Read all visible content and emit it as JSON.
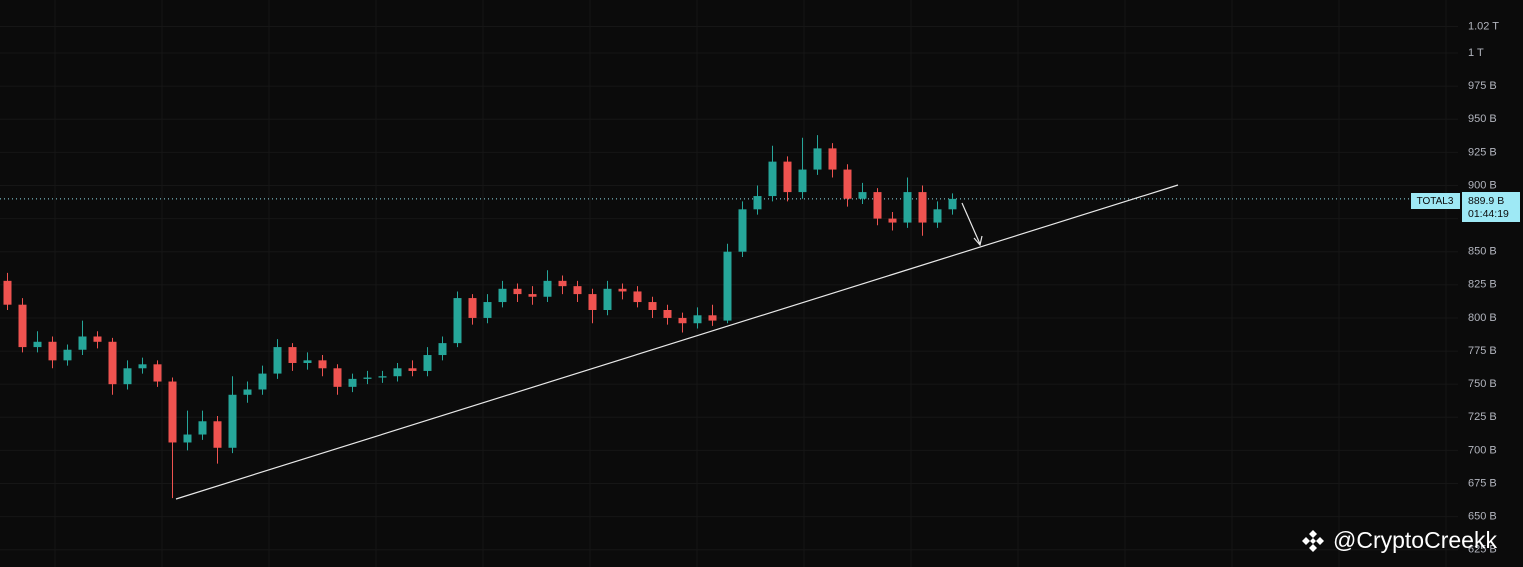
{
  "chart_data": {
    "type": "candlestick",
    "symbol": "TOTAL3",
    "last_price": 889.9,
    "last_price_label": "889.9 B",
    "countdown": "01:44:19",
    "watermark": "@CryptoCreekk",
    "up_color": "#26a69a",
    "down_color": "#ef5350",
    "grid": true,
    "ylim": [
      612,
      1040
    ],
    "yticks": [
      {
        "value": 625,
        "label": "625 B"
      },
      {
        "value": 650,
        "label": "650 B"
      },
      {
        "value": 675,
        "label": "675 B"
      },
      {
        "value": 700,
        "label": "700 B"
      },
      {
        "value": 725,
        "label": "725 B"
      },
      {
        "value": 750,
        "label": "750 B"
      },
      {
        "value": 775,
        "label": "775 B"
      },
      {
        "value": 800,
        "label": "800 B"
      },
      {
        "value": 825,
        "label": "825 B"
      },
      {
        "value": 850,
        "label": "850 B"
      },
      {
        "value": 875,
        "label": "875 B"
      },
      {
        "value": 900,
        "label": "900 B"
      },
      {
        "value": 925,
        "label": "925 B"
      },
      {
        "value": 950,
        "label": "950 B"
      },
      {
        "value": 975,
        "label": "975 B"
      },
      {
        "value": 1000,
        "label": "1 T"
      },
      {
        "value": 1020,
        "label": "1.02 T"
      }
    ],
    "open": [
      828,
      810,
      778,
      782,
      768,
      776,
      786,
      782,
      750,
      762,
      765,
      752,
      706,
      712,
      722,
      702,
      742,
      746,
      758,
      778,
      766,
      768,
      762,
      748,
      754,
      755,
      756,
      762,
      760,
      772,
      781,
      815,
      800,
      812,
      822,
      818,
      816,
      828,
      824,
      818,
      806,
      822,
      820,
      812,
      806,
      800,
      796,
      802,
      798,
      850,
      882,
      892,
      918,
      895,
      912,
      928,
      912,
      890,
      895,
      875,
      872,
      895,
      872,
      882
    ],
    "high": [
      834,
      815,
      790,
      786,
      780,
      798,
      790,
      785,
      768,
      770,
      768,
      755,
      730,
      730,
      726,
      756,
      752,
      764,
      784,
      781,
      774,
      772,
      765,
      758,
      760,
      760,
      766,
      768,
      778,
      786,
      820,
      818,
      818,
      828,
      826,
      824,
      836,
      832,
      828,
      822,
      828,
      826,
      824,
      816,
      810,
      804,
      808,
      810,
      856,
      888,
      900,
      930,
      922,
      936,
      938,
      932,
      916,
      902,
      898,
      880,
      906,
      900,
      888,
      894
    ],
    "low": [
      806,
      774,
      774,
      762,
      764,
      772,
      777,
      742,
      746,
      758,
      748,
      664,
      700,
      708,
      690,
      698,
      736,
      742,
      754,
      760,
      761,
      756,
      742,
      744,
      750,
      751,
      752,
      756,
      756,
      768,
      778,
      795,
      796,
      808,
      812,
      810,
      812,
      818,
      812,
      796,
      802,
      814,
      808,
      800,
      795,
      789,
      792,
      794,
      796,
      846,
      878,
      888,
      888,
      890,
      908,
      906,
      884,
      886,
      870,
      866,
      868,
      862,
      868,
      878
    ],
    "close": [
      810,
      778,
      782,
      768,
      776,
      786,
      782,
      750,
      762,
      765,
      752,
      706,
      712,
      722,
      702,
      742,
      746,
      758,
      778,
      766,
      768,
      762,
      748,
      754,
      755,
      756,
      762,
      760,
      772,
      781,
      815,
      800,
      812,
      822,
      818,
      816,
      828,
      824,
      818,
      806,
      822,
      820,
      812,
      806,
      800,
      796,
      802,
      798,
      850,
      882,
      892,
      918,
      895,
      912,
      928,
      912,
      890,
      895,
      875,
      872,
      895,
      872,
      882,
      889.9
    ]
  }
}
